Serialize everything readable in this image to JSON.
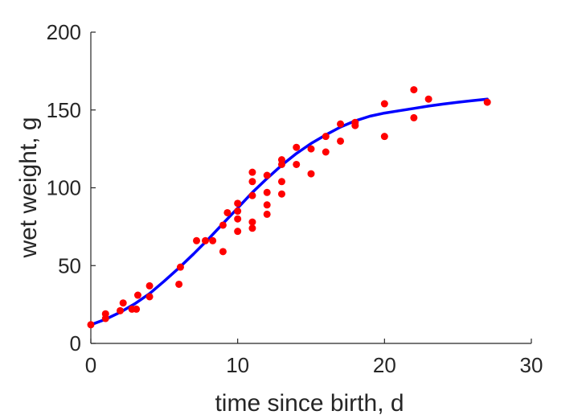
{
  "chart_data": {
    "type": "scatter",
    "xlabel": "time since birth, d",
    "ylabel": "wet weight, g",
    "xlim": [
      0,
      30
    ],
    "ylim": [
      0,
      200
    ],
    "xticks": [
      "0",
      "10",
      "20",
      "30"
    ],
    "yticks": [
      "0",
      "50",
      "100",
      "150",
      "200"
    ],
    "grid": false,
    "series": [
      {
        "kind": "points",
        "color": "#ff0000",
        "points": [
          [
            0,
            12
          ],
          [
            1,
            16
          ],
          [
            1,
            19
          ],
          [
            2,
            21
          ],
          [
            2.2,
            26
          ],
          [
            2.8,
            22
          ],
          [
            3.1,
            22
          ],
          [
            3.2,
            31
          ],
          [
            4,
            30
          ],
          [
            4,
            37
          ],
          [
            6,
            38
          ],
          [
            6.1,
            49
          ],
          [
            7.2,
            66
          ],
          [
            7.8,
            66
          ],
          [
            8.3,
            66
          ],
          [
            9,
            59
          ],
          [
            9,
            76
          ],
          [
            9.3,
            84
          ],
          [
            10,
            72
          ],
          [
            10,
            80
          ],
          [
            10,
            85
          ],
          [
            10,
            90
          ],
          [
            11,
            74
          ],
          [
            11,
            78
          ],
          [
            11,
            95
          ],
          [
            11,
            104
          ],
          [
            11,
            110
          ],
          [
            12,
            83
          ],
          [
            12,
            89
          ],
          [
            12,
            97
          ],
          [
            12,
            108
          ],
          [
            13,
            96
          ],
          [
            13,
            104
          ],
          [
            13,
            115
          ],
          [
            13,
            118
          ],
          [
            14,
            115
          ],
          [
            14,
            126
          ],
          [
            15,
            109
          ],
          [
            15,
            125
          ],
          [
            16,
            123
          ],
          [
            16,
            133
          ],
          [
            17,
            130
          ],
          [
            17,
            141
          ],
          [
            18,
            140
          ],
          [
            18,
            142
          ],
          [
            20,
            133
          ],
          [
            20,
            154
          ],
          [
            22,
            145
          ],
          [
            22,
            163
          ],
          [
            23,
            157
          ],
          [
            27,
            155
          ]
        ]
      },
      {
        "kind": "line",
        "color": "#0000ff",
        "points": [
          [
            0,
            12
          ],
          [
            1,
            15.5
          ],
          [
            2,
            20
          ],
          [
            3,
            25.5
          ],
          [
            4,
            32
          ],
          [
            5,
            40
          ],
          [
            6,
            48.5
          ],
          [
            7,
            57.5
          ],
          [
            8,
            67
          ],
          [
            9,
            77
          ],
          [
            10,
            87
          ],
          [
            11,
            97
          ],
          [
            12,
            106
          ],
          [
            13,
            114.5
          ],
          [
            14,
            122
          ],
          [
            15,
            128.5
          ],
          [
            16,
            134
          ],
          [
            17,
            139
          ],
          [
            18,
            143
          ],
          [
            19,
            146
          ],
          [
            20,
            148
          ],
          [
            21,
            149.5
          ],
          [
            22,
            151
          ],
          [
            23,
            152.5
          ],
          [
            24,
            153.8
          ],
          [
            25,
            155
          ],
          [
            26,
            156
          ],
          [
            27,
            157
          ]
        ]
      }
    ]
  }
}
